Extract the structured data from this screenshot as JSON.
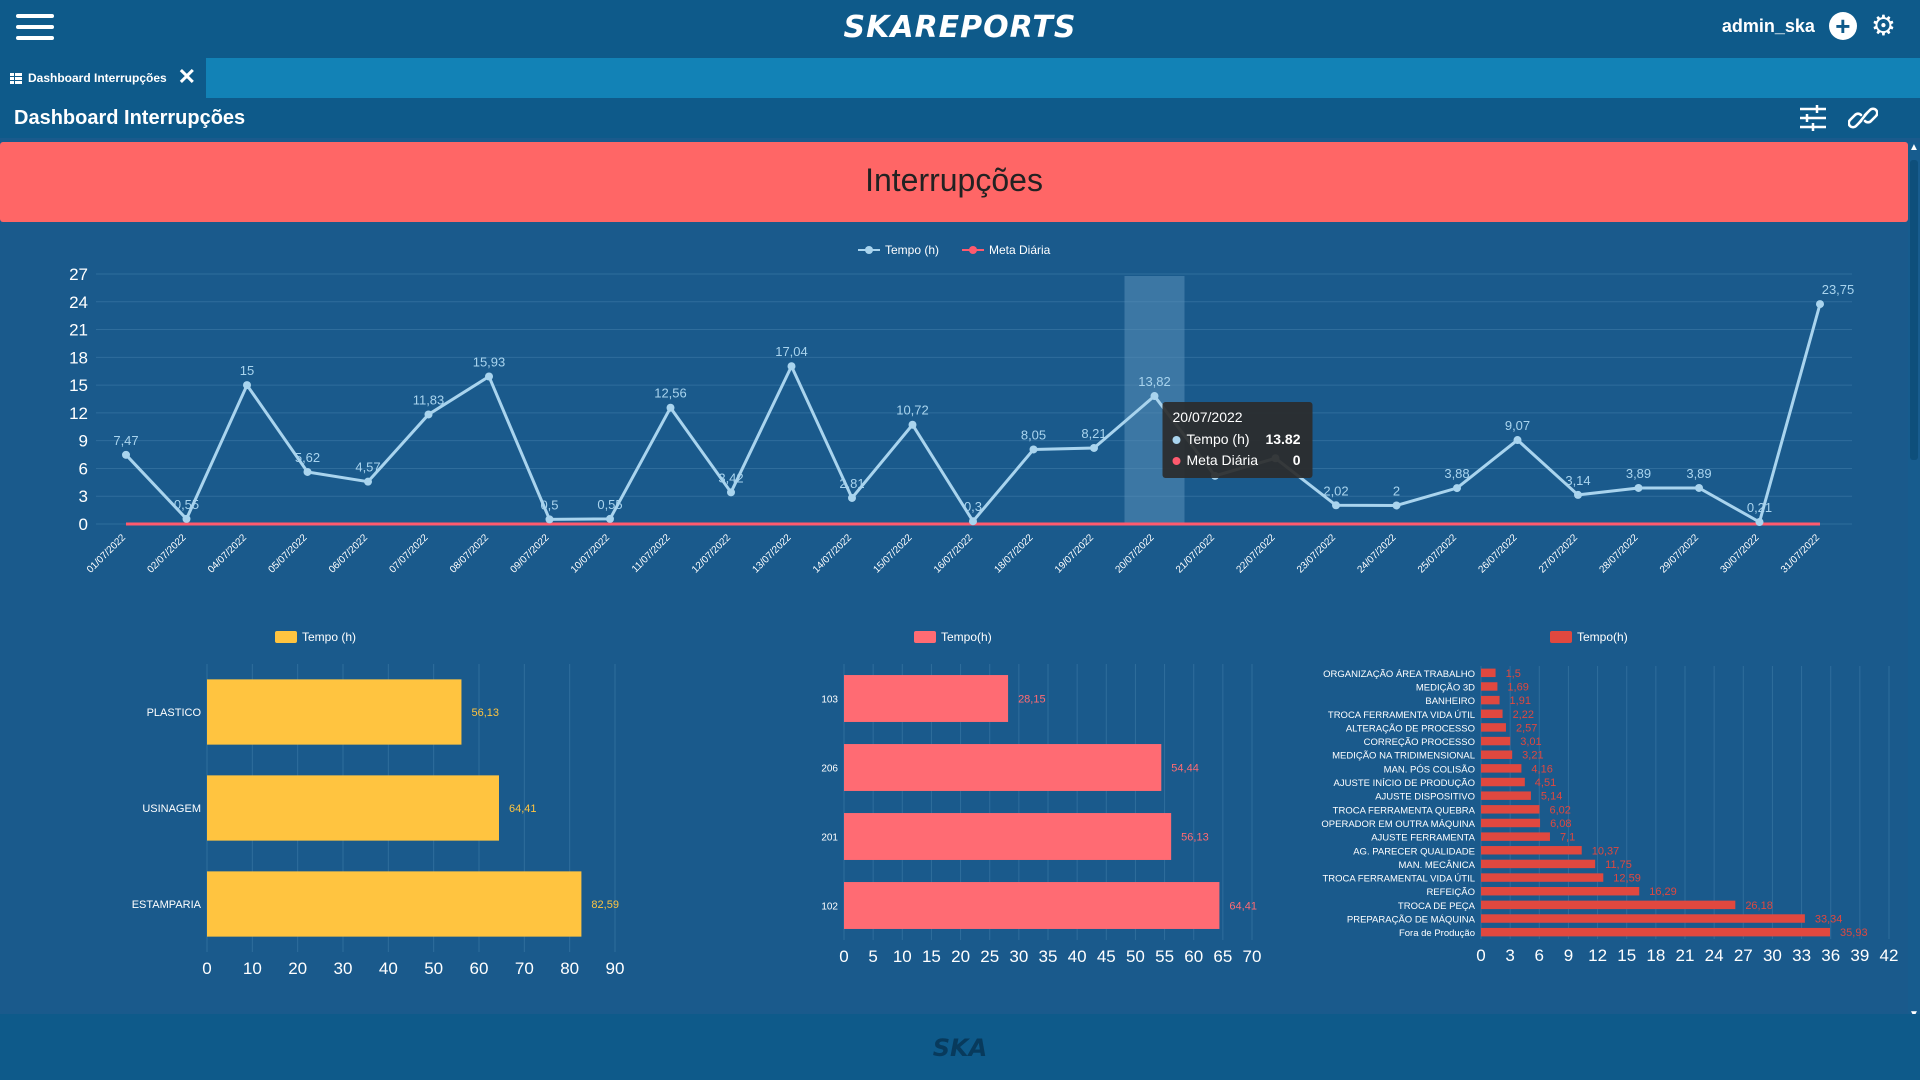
{
  "header": {
    "brand": "SKAREPORTS",
    "user": "admin_ska"
  },
  "tab": {
    "label": "Dashboard Interrupções"
  },
  "page": {
    "title": "Dashboard Interrupções",
    "banner": "Interrupções"
  },
  "footer": {
    "logo": "SKA"
  },
  "colors": {
    "header": "#0e5a8a",
    "banner": "#ff6666",
    "line": "#a9d4ee",
    "meta": "#ff5a6e",
    "yellow": "#ffc440",
    "pink": "#ff6b73",
    "red": "#e0483f"
  },
  "icons": [
    "menu-icon",
    "plus-icon",
    "gear-icon",
    "dashboard-icon",
    "close-icon",
    "sliders-icon",
    "link-icon"
  ],
  "chart_data": [
    {
      "type": "line",
      "legend": [
        "Tempo (h)",
        "Meta Diária"
      ],
      "x": [
        "01/07/2022",
        "02/07/2022",
        "04/07/2022",
        "05/07/2022",
        "06/07/2022",
        "07/07/2022",
        "08/07/2022",
        "09/07/2022",
        "10/07/2022",
        "11/07/2022",
        "12/07/2022",
        "13/07/2022",
        "14/07/2022",
        "15/07/2022",
        "16/07/2022",
        "18/07/2022",
        "19/07/2022",
        "20/07/2022",
        "21/07/2022",
        "22/07/2022",
        "23/07/2022",
        "24/07/2022",
        "25/07/2022",
        "26/07/2022",
        "27/07/2022",
        "28/07/2022",
        "29/07/2022",
        "30/07/2022",
        "31/07/2022"
      ],
      "series": [
        {
          "name": "Tempo (h)",
          "values": [
            7.47,
            0.55,
            15,
            5.62,
            4.57,
            11.83,
            15.93,
            0.5,
            0.55,
            12.56,
            3.42,
            17.04,
            2.81,
            10.72,
            0.3,
            8.05,
            8.21,
            13.82,
            5.2,
            7.1,
            2.02,
            2,
            3.88,
            9.07,
            3.14,
            3.89,
            3.89,
            0.21,
            23.75
          ]
        },
        {
          "name": "Meta Diária",
          "values": [
            0,
            0,
            0,
            0,
            0,
            0,
            0,
            0,
            0,
            0,
            0,
            0,
            0,
            0,
            0,
            0,
            0,
            0,
            0,
            0,
            0,
            0,
            0,
            0,
            0,
            0,
            0,
            0,
            0
          ]
        }
      ],
      "labels": [
        "7,47",
        "0,55",
        "15",
        "5,62",
        "4,57",
        "11,83",
        "15,93",
        "0,5",
        "0,55",
        "12,56",
        "3,42",
        "17,04",
        "2,81",
        "10,72",
        "0,3",
        "8,05",
        "8,21",
        "13,82",
        "",
        "",
        "2,02",
        "2",
        "3,88",
        "9,07",
        "3,14",
        "3,89",
        "3,89",
        "0,21",
        "23,75"
      ],
      "ylim": [
        0,
        27
      ],
      "yticks": [
        "0",
        "3",
        "6",
        "9",
        "12",
        "15",
        "18",
        "21",
        "24",
        "27"
      ],
      "grid": true,
      "tooltip": {
        "date": "20/07/2022",
        "rows": [
          {
            "name": "Tempo (h)",
            "value": "13.82"
          },
          {
            "name": "Meta Diária",
            "value": "0"
          }
        ]
      }
    },
    {
      "type": "bar",
      "orientation": "horizontal",
      "legend": "Tempo (h)",
      "categories": [
        "PLASTICO",
        "USINAGEM",
        "ESTAMPARIA"
      ],
      "values": [
        56.13,
        64.41,
        82.59
      ],
      "labels": [
        "56,13",
        "64,41",
        "82,59"
      ],
      "xlim": [
        0,
        90
      ],
      "xticks": [
        "0",
        "10",
        "20",
        "30",
        "40",
        "50",
        "60",
        "70",
        "80",
        "90"
      ]
    },
    {
      "type": "bar",
      "orientation": "horizontal",
      "legend": "Tempo(h)",
      "categories": [
        "103",
        "206",
        "201",
        "102"
      ],
      "values": [
        28.15,
        54.44,
        56.13,
        64.41
      ],
      "labels": [
        "28,15",
        "54,44",
        "56,13",
        "64,41"
      ],
      "xlim": [
        0,
        70
      ],
      "xticks": [
        "0",
        "5",
        "10",
        "15",
        "20",
        "25",
        "30",
        "35",
        "40",
        "45",
        "50",
        "55",
        "60",
        "65",
        "70"
      ]
    },
    {
      "type": "bar",
      "orientation": "horizontal",
      "legend": "Tempo(h)",
      "categories": [
        "ORGANIZAÇÃO ÁREA TRABALHO",
        "MEDIÇÃO 3D",
        "BANHEIRO",
        "TROCA FERRAMENTA VIDA ÚTIL",
        "ALTERAÇÃO DE PROCESSO",
        "CORREÇÃO PROCESSO",
        "MEDIÇÃO NA TRIDIMENSIONAL",
        "MAN. PÓS COLISÃO",
        "AJUSTE INÍCIO DE PRODUÇÃO",
        "AJUSTE DISPOSITIVO",
        "TROCA FERRAMENTA QUEBRA",
        "OPERADOR EM OUTRA MÁQUINA",
        "AJUSTE FERRAMENTA",
        "AG. PARECER QUALIDADE",
        "MAN. MECÂNICA",
        "TROCA FERRAMENTAL VIDA ÚTIL",
        "REFEIÇÃO",
        "TROCA DE PEÇA",
        "PREPARAÇÃO DE MÁQUINA",
        "Fora de Produção"
      ],
      "values": [
        1.5,
        1.69,
        1.91,
        2.22,
        2.57,
        3.01,
        3.21,
        4.16,
        4.51,
        5.14,
        6.02,
        6.08,
        7.1,
        10.37,
        11.75,
        12.59,
        16.29,
        26.18,
        33.34,
        35.93
      ],
      "labels": [
        "1,5",
        "1,69",
        "1,91",
        "2,22",
        "2,57",
        "3,01",
        "3,21",
        "4,16",
        "4,51",
        "5,14",
        "6,02",
        "6,08",
        "7,1",
        "10,37",
        "11,75",
        "12,59",
        "16,29",
        "26,18",
        "33,34",
        "35,93"
      ],
      "xlim": [
        0,
        42
      ],
      "xticks": [
        "0",
        "3",
        "6",
        "9",
        "12",
        "15",
        "18",
        "21",
        "24",
        "27",
        "30",
        "33",
        "36",
        "39",
        "42"
      ]
    }
  ]
}
